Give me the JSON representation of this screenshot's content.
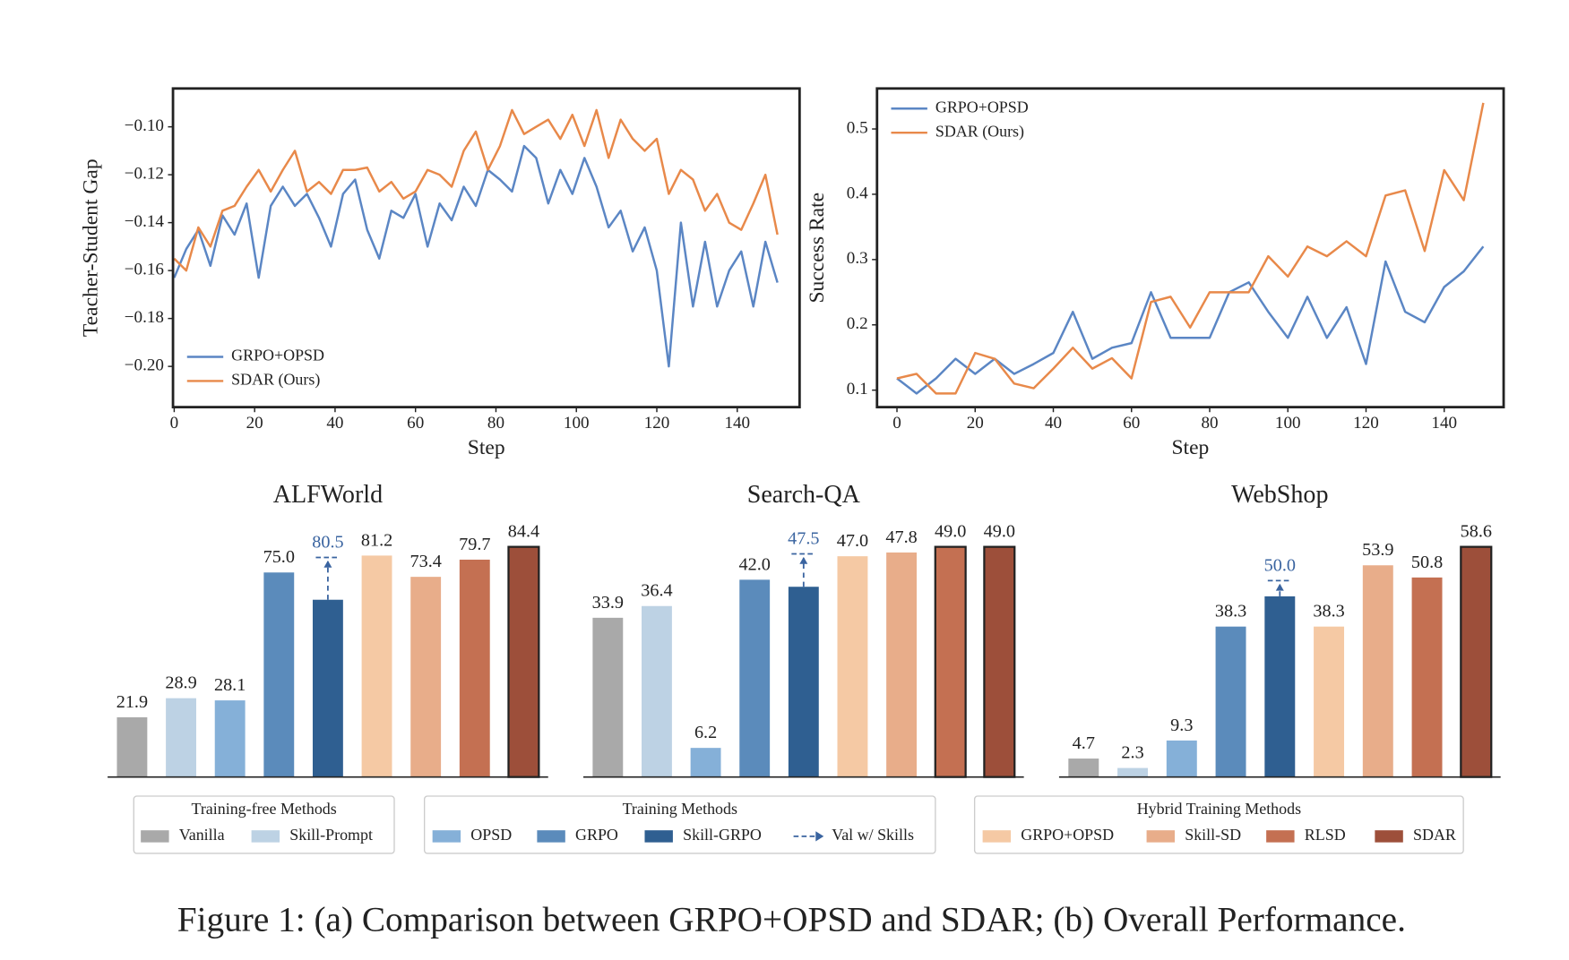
{
  "chart_data": [
    {
      "type": "line",
      "xlabel": "Step",
      "ylabel": "Teacher-Student Gap",
      "x": [
        0,
        3,
        6,
        9,
        12,
        15,
        18,
        21,
        24,
        27,
        30,
        33,
        36,
        39,
        42,
        45,
        48,
        51,
        54,
        57,
        60,
        63,
        66,
        69,
        72,
        75,
        78,
        81,
        84,
        87,
        90,
        93,
        96,
        99,
        102,
        105,
        108,
        111,
        114,
        117,
        120,
        123,
        126,
        129,
        132,
        135,
        138,
        141,
        144,
        147,
        150
      ],
      "series": [
        {
          "name": "GRPO+OPSD",
          "color": "#5b86c4",
          "values": [
            -0.163,
            -0.151,
            -0.143,
            -0.158,
            -0.137,
            -0.145,
            -0.132,
            -0.163,
            -0.133,
            -0.125,
            -0.133,
            -0.128,
            -0.138,
            -0.15,
            -0.128,
            -0.122,
            -0.143,
            -0.155,
            -0.135,
            -0.138,
            -0.128,
            -0.15,
            -0.132,
            -0.139,
            -0.125,
            -0.133,
            -0.118,
            -0.122,
            -0.127,
            -0.108,
            -0.113,
            -0.132,
            -0.118,
            -0.128,
            -0.113,
            -0.125,
            -0.142,
            -0.135,
            -0.152,
            -0.142,
            -0.16,
            -0.2,
            -0.14,
            -0.175,
            -0.148,
            -0.175,
            -0.16,
            -0.152,
            -0.175,
            -0.148,
            -0.165
          ]
        },
        {
          "name": "SDAR (Ours)",
          "color": "#e8894a",
          "values": [
            -0.155,
            -0.16,
            -0.142,
            -0.15,
            -0.135,
            -0.133,
            -0.125,
            -0.118,
            -0.127,
            -0.118,
            -0.11,
            -0.127,
            -0.123,
            -0.128,
            -0.118,
            -0.118,
            -0.117,
            -0.127,
            -0.123,
            -0.13,
            -0.127,
            -0.118,
            -0.12,
            -0.125,
            -0.11,
            -0.102,
            -0.118,
            -0.108,
            -0.093,
            -0.103,
            -0.1,
            -0.097,
            -0.105,
            -0.095,
            -0.108,
            -0.093,
            -0.113,
            -0.097,
            -0.105,
            -0.11,
            -0.105,
            -0.128,
            -0.118,
            -0.122,
            -0.135,
            -0.128,
            -0.14,
            -0.143,
            -0.132,
            -0.12,
            -0.145
          ]
        }
      ],
      "xlim": [
        -0.3,
        155.5
      ],
      "ylim": [
        -0.217,
        -0.084
      ],
      "xticks": [
        0,
        20,
        40,
        60,
        80,
        100,
        120,
        140
      ],
      "yticks": [
        {
          "value": -0.1,
          "label": "−0.10"
        },
        {
          "value": -0.12,
          "label": "−0.12"
        },
        {
          "value": -0.14,
          "label": "−0.14"
        },
        {
          "value": -0.16,
          "label": "−0.16"
        },
        {
          "value": -0.18,
          "label": "−0.18"
        },
        {
          "value": -0.2,
          "label": "−0.20"
        }
      ],
      "legend_loc": "lower left"
    },
    {
      "type": "line",
      "xlabel": "Step",
      "ylabel": "Success Rate",
      "x": [
        0,
        5,
        10,
        15,
        20,
        25,
        30,
        35,
        40,
        45,
        50,
        55,
        60,
        65,
        70,
        75,
        80,
        85,
        90,
        95,
        100,
        105,
        110,
        115,
        120,
        125,
        130,
        135,
        140,
        145,
        150
      ],
      "series": [
        {
          "name": "GRPO+OPSD",
          "color": "#5b86c4",
          "values": [
            0.118,
            0.095,
            0.118,
            0.148,
            0.125,
            0.148,
            0.125,
            0.14,
            0.157,
            0.22,
            0.148,
            0.165,
            0.172,
            0.25,
            0.18,
            0.18,
            0.18,
            0.25,
            0.265,
            0.22,
            0.18,
            0.243,
            0.18,
            0.227,
            0.14,
            0.297,
            0.22,
            0.204,
            0.258,
            0.282,
            0.32
          ]
        },
        {
          "name": "SDAR (Ours)",
          "color": "#e8894a",
          "values": [
            0.118,
            0.125,
            0.095,
            0.095,
            0.157,
            0.148,
            0.11,
            0.103,
            0.133,
            0.165,
            0.133,
            0.149,
            0.118,
            0.235,
            0.243,
            0.196,
            0.25,
            0.25,
            0.25,
            0.305,
            0.274,
            0.32,
            0.305,
            0.328,
            0.305,
            0.398,
            0.406,
            0.313,
            0.437,
            0.391,
            0.54
          ]
        }
      ],
      "xlim": [
        -5.1,
        155.2
      ],
      "ylim": [
        0.074,
        0.562
      ],
      "xticks": [
        0,
        20,
        40,
        60,
        80,
        100,
        120,
        140
      ],
      "yticks": [
        0.1,
        0.2,
        0.3,
        0.4,
        0.5
      ],
      "legend_loc": "upper left"
    },
    {
      "type": "bar",
      "title": "ALFWorld",
      "values": [
        21.9,
        28.9,
        28.1,
        75.0,
        65.0,
        81.2,
        73.4,
        79.7,
        84.4
      ],
      "value_labels": [
        "21.9",
        "28.9",
        "28.1",
        "75.0",
        null,
        "81.2",
        "73.4",
        "79.7",
        "84.4"
      ],
      "val_with_skills": {
        "method": "Skill-GRPO",
        "value": 80.5,
        "label": "80.5"
      }
    },
    {
      "type": "bar",
      "title": "Search-QA",
      "values": [
        33.9,
        36.4,
        6.2,
        42.0,
        40.5,
        47.0,
        47.8,
        49.0,
        49.0
      ],
      "value_labels": [
        "33.9",
        "36.4",
        "6.2",
        "42.0",
        null,
        "47.0",
        "47.8",
        "49.0",
        "49.0"
      ],
      "val_with_skills": {
        "method": "Skill-GRPO",
        "value": 47.5,
        "label": "47.5"
      }
    },
    {
      "type": "bar",
      "title": "WebShop",
      "values": [
        4.7,
        2.3,
        9.3,
        38.3,
        46.0,
        38.3,
        53.9,
        50.8,
        58.6
      ],
      "value_labels": [
        "4.7",
        "2.3",
        "9.3",
        "38.3",
        null,
        "38.3",
        "53.9",
        "50.8",
        "58.6"
      ],
      "val_with_skills": {
        "method": "Skill-GRPO",
        "value": 50.0,
        "label": "50.0"
      }
    }
  ],
  "legend": {
    "groups": [
      {
        "title": "Training-free Methods",
        "items": [
          {
            "name": "Vanilla",
            "color": "#a9a9a9"
          },
          {
            "name": "Skill-Prompt",
            "color": "#bdd2e4"
          }
        ]
      },
      {
        "title": "Training Methods",
        "items": [
          {
            "name": "OPSD",
            "color": "#85b0d8"
          },
          {
            "name": "GRPO",
            "color": "#5b8bbb"
          },
          {
            "name": "Skill-GRPO",
            "color": "#2f5f91"
          },
          {
            "name": "Val w/ Skills",
            "color": "#3a64a0",
            "style": "dashed-arrow"
          }
        ]
      },
      {
        "title": "Hybrid Training Methods",
        "items": [
          {
            "name": "GRPO+OPSD",
            "color": "#f5c9a4"
          },
          {
            "name": "Skill-SD",
            "color": "#e8ad8a"
          },
          {
            "name": "RLSD",
            "color": "#c47052"
          },
          {
            "name": "SDAR",
            "color": "#9d4f3a"
          }
        ]
      }
    ]
  },
  "caption": "Figure 1: (a) Comparison between GRPO+OPSD and SDAR; (b) Overall Performance."
}
